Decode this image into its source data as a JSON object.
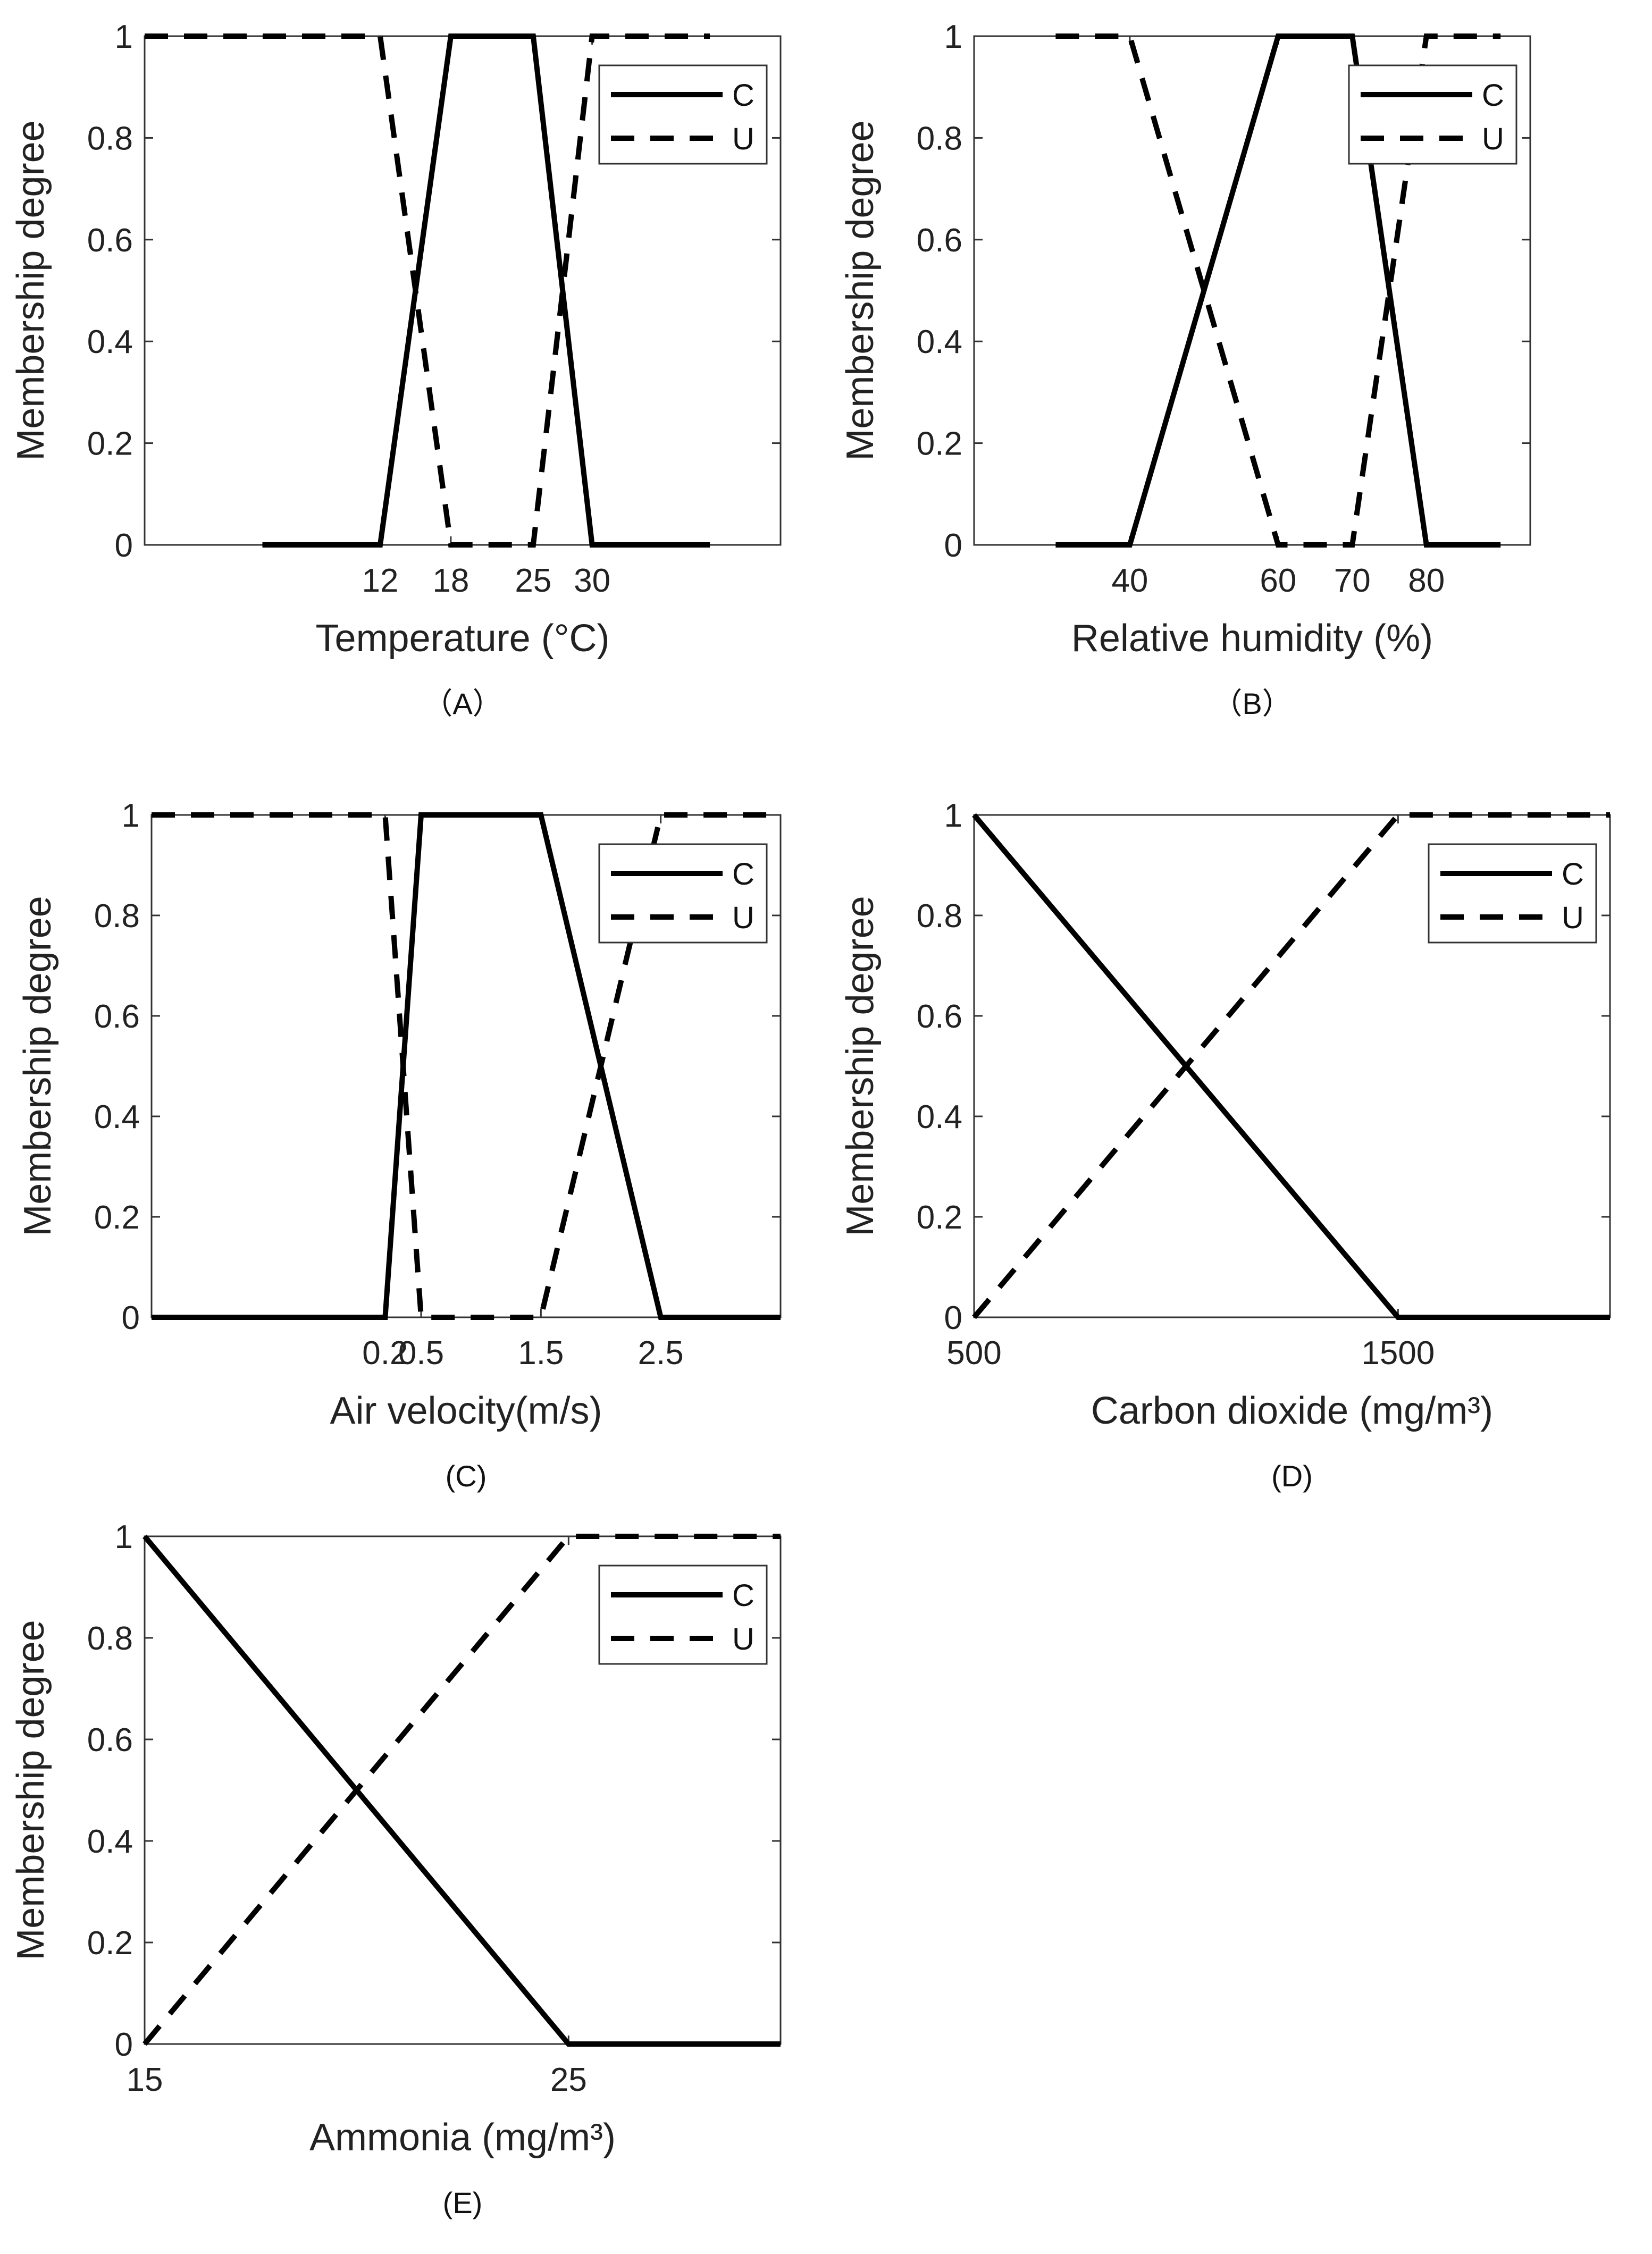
{
  "figure": {
    "colors": {
      "line": "#000000",
      "frame": "#333333",
      "text": "#222222"
    }
  },
  "chart_data": [
    {
      "id": "A",
      "type": "line",
      "panel_label": "（A）",
      "xlabel": "Temperature (°C)",
      "ylabel": "Membership degree",
      "xlim": [
        -8,
        46
      ],
      "ylim": [
        0,
        1
      ],
      "xticks": [
        12,
        18,
        25,
        30
      ],
      "xtick_labels": [
        "12",
        "18",
        "25",
        "30"
      ],
      "yticks": [
        0,
        0.2,
        0.4,
        0.6,
        0.8,
        1
      ],
      "ytick_labels": [
        "0",
        "0.2",
        "0.4",
        "0.6",
        "0.8",
        "1"
      ],
      "grid": false,
      "legend": {
        "position": "top-right",
        "entries": [
          "C",
          "U"
        ]
      },
      "series": [
        {
          "name": "C",
          "style": "solid",
          "x": [
            2,
            12,
            18,
            25,
            30,
            40
          ],
          "y": [
            0,
            0,
            1,
            1,
            0,
            0
          ]
        },
        {
          "name": "U",
          "style": "dashed",
          "x": [
            -8,
            12,
            18,
            25,
            30,
            40
          ],
          "y": [
            1,
            1,
            0,
            0,
            1,
            1
          ]
        }
      ]
    },
    {
      "id": "B",
      "type": "line",
      "panel_label": "（B）",
      "xlabel": "Relative humidity (%)",
      "ylabel": "Membership degree",
      "xlim": [
        19,
        94
      ],
      "ylim": [
        0,
        1
      ],
      "xticks": [
        40,
        60,
        70,
        80
      ],
      "xtick_labels": [
        "40",
        "60",
        "70",
        "80"
      ],
      "yticks": [
        0,
        0.2,
        0.4,
        0.6,
        0.8,
        1
      ],
      "ytick_labels": [
        "0",
        "0.2",
        "0.4",
        "0.6",
        "0.8",
        "1"
      ],
      "grid": false,
      "legend": {
        "position": "top-right",
        "entries": [
          "C",
          "U"
        ]
      },
      "series": [
        {
          "name": "C",
          "style": "solid",
          "x": [
            30,
            40,
            60,
            70,
            80,
            90
          ],
          "y": [
            0,
            0,
            1,
            1,
            0,
            0
          ]
        },
        {
          "name": "U",
          "style": "dashed",
          "x": [
            30,
            40,
            60,
            70,
            80,
            90
          ],
          "y": [
            1,
            1,
            0,
            0,
            1,
            1
          ]
        }
      ]
    },
    {
      "id": "C",
      "type": "line",
      "panel_label": "(C)",
      "xlabel": "Air velocity(m/s)",
      "ylabel": "Membership degree",
      "xlim": [
        -1.75,
        3.5
      ],
      "ylim": [
        0,
        1
      ],
      "xticks": [
        0.2,
        0.5,
        1.5,
        2.5
      ],
      "xtick_labels": [
        "0.2",
        "0.5",
        "1.5",
        "2.5"
      ],
      "yticks": [
        0,
        0.2,
        0.4,
        0.6,
        0.8,
        1
      ],
      "ytick_labels": [
        "0",
        "0.2",
        "0.4",
        "0.6",
        "0.8",
        "1"
      ],
      "grid": false,
      "legend": {
        "position": "top-right",
        "entries": [
          "C",
          "U"
        ]
      },
      "series": [
        {
          "name": "C",
          "style": "solid",
          "x": [
            -1.75,
            0.2,
            0.5,
            1.5,
            2.5,
            3.5
          ],
          "y": [
            0,
            0,
            1,
            1,
            0,
            0
          ]
        },
        {
          "name": "U",
          "style": "dashed",
          "x": [
            -1.75,
            0.2,
            0.5,
            1.5,
            2.5,
            3.5
          ],
          "y": [
            1,
            1,
            0,
            0,
            1,
            1
          ]
        }
      ]
    },
    {
      "id": "D",
      "type": "line",
      "panel_label": "(D)",
      "xlabel": "Carbon dioxide (mg/m³)",
      "ylabel": "Membership degree",
      "xlim": [
        500,
        2000
      ],
      "ylim": [
        0,
        1
      ],
      "xticks": [
        500,
        1500
      ],
      "xtick_labels": [
        "500",
        "1500"
      ],
      "yticks": [
        0,
        0.2,
        0.4,
        0.6,
        0.8,
        1
      ],
      "ytick_labels": [
        "0",
        "0.2",
        "0.4",
        "0.6",
        "0.8",
        "1"
      ],
      "grid": false,
      "legend": {
        "position": "top-right",
        "entries": [
          "C",
          "U"
        ]
      },
      "series": [
        {
          "name": "C",
          "style": "solid",
          "x": [
            500,
            1500,
            2000
          ],
          "y": [
            1,
            0,
            0
          ]
        },
        {
          "name": "U",
          "style": "dashed",
          "x": [
            500,
            1500,
            2000
          ],
          "y": [
            0,
            1,
            1
          ]
        }
      ]
    },
    {
      "id": "E",
      "type": "line",
      "panel_label": "(E)",
      "xlabel": "Ammonia (mg/m³)",
      "ylabel": "Membership degree",
      "xlim": [
        15,
        30
      ],
      "ylim": [
        0,
        1
      ],
      "xticks": [
        15,
        25
      ],
      "xtick_labels": [
        "15",
        "25"
      ],
      "yticks": [
        0,
        0.2,
        0.4,
        0.6,
        0.8,
        1
      ],
      "ytick_labels": [
        "0",
        "0.2",
        "0.4",
        "0.6",
        "0.8",
        "1"
      ],
      "grid": false,
      "legend": {
        "position": "top-right",
        "entries": [
          "C",
          "U"
        ]
      },
      "series": [
        {
          "name": "C",
          "style": "solid",
          "x": [
            15,
            25,
            30
          ],
          "y": [
            1,
            0,
            0
          ]
        },
        {
          "name": "U",
          "style": "dashed",
          "x": [
            15,
            25,
            30
          ],
          "y": [
            0,
            1,
            1
          ]
        }
      ]
    }
  ]
}
